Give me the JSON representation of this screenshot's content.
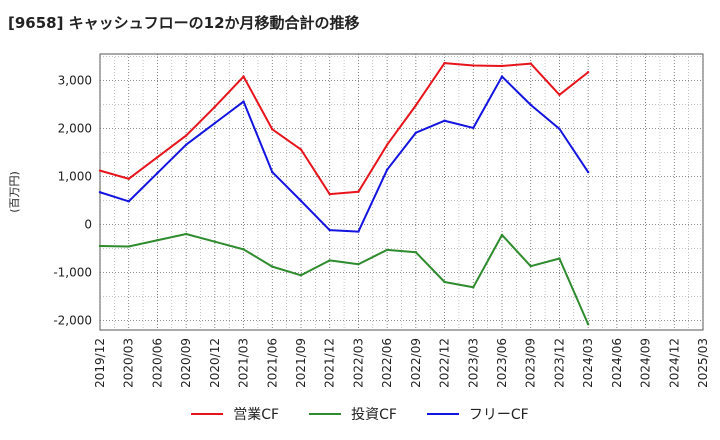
{
  "chart_data": {
    "type": "line",
    "title": "[9658]  キャッシュフローの12か月移動合計の推移",
    "ylabel": "(百万円)",
    "xlabel": "",
    "ylim": [
      -2200,
      3550
    ],
    "yticks": [
      -2000,
      -1000,
      0,
      1000,
      2000,
      3000
    ],
    "ytick_labels": [
      "-2,000",
      "-1,000",
      "0",
      "1,000",
      "2,000",
      "3,000"
    ],
    "categories": [
      "2019/12",
      "2020/03",
      "2020/06",
      "2020/09",
      "2020/12",
      "2021/03",
      "2021/06",
      "2021/09",
      "2021/12",
      "2022/03",
      "2022/06",
      "2022/09",
      "2022/12",
      "2023/03",
      "2023/06",
      "2023/09",
      "2023/12",
      "2024/03",
      "2024/06",
      "2024/09",
      "2024/12",
      "2025/03"
    ],
    "grid": true,
    "legend_position": "bottom",
    "series": [
      {
        "name": "営業CF",
        "color": "#e8141c",
        "values": [
          1120,
          950,
          1400,
          1850,
          2450,
          3080,
          1980,
          1560,
          630,
          680,
          1660,
          2480,
          3360,
          3310,
          3300,
          3350,
          2700,
          3170,
          null,
          null,
          null,
          null
        ]
      },
      {
        "name": "投資CF",
        "color": "#2e8b2e",
        "values": [
          -450,
          -460,
          -330,
          -200,
          -360,
          -520,
          -880,
          -1060,
          -750,
          -830,
          -530,
          -580,
          -1200,
          -1310,
          -220,
          -870,
          -710,
          -2080,
          null,
          null,
          null,
          null
        ]
      },
      {
        "name": "フリーCF",
        "color": "#1414e0",
        "values": [
          670,
          480,
          1070,
          1660,
          2110,
          2560,
          1090,
          490,
          -120,
          -150,
          1140,
          1910,
          2160,
          2010,
          3080,
          2490,
          1990,
          1090,
          null,
          null,
          null,
          null
        ]
      }
    ]
  }
}
